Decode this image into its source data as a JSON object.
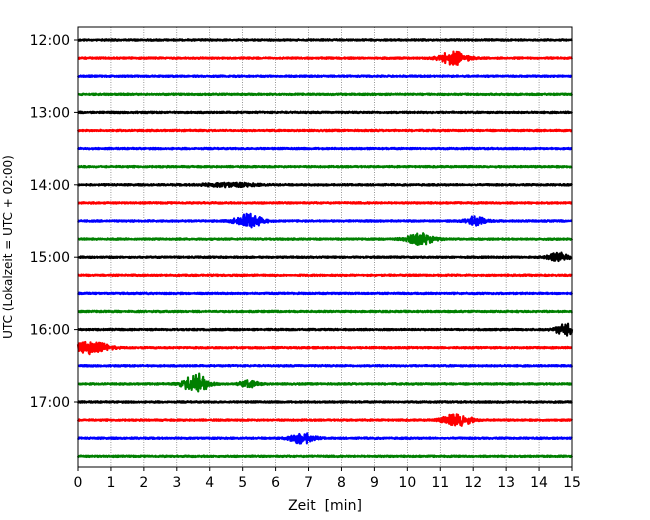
{
  "chart_data": {
    "type": "line",
    "xlabel": "Zeit  [min]",
    "ylabel": "UTC (Lokalzeit = UTC + 02:00)",
    "xlim": [
      0,
      15
    ],
    "x_ticks": [
      0,
      1,
      2,
      3,
      4,
      5,
      6,
      7,
      8,
      9,
      10,
      11,
      12,
      13,
      14,
      15
    ],
    "grid_x": true,
    "trace_interval_min": 15,
    "traces_start": "12:00",
    "traces_count": 24,
    "y_tick_labels": [
      "12:00",
      "13:00",
      "14:00",
      "15:00",
      "16:00",
      "17:00"
    ],
    "color_cycle": [
      "#000000",
      "#ff0000",
      "#0000ff",
      "#008000"
    ],
    "events": [
      {
        "trace": 1,
        "minute": 11.4,
        "amplitude": 0.55,
        "width": 0.4
      },
      {
        "trace": 8,
        "minute": 4.6,
        "amplitude": 0.15,
        "width": 0.8
      },
      {
        "trace": 10,
        "minute": 5.2,
        "amplitude": 0.55,
        "width": 0.4
      },
      {
        "trace": 10,
        "minute": 12.1,
        "amplitude": 0.4,
        "width": 0.3
      },
      {
        "trace": 11,
        "minute": 10.4,
        "amplitude": 0.45,
        "width": 0.4
      },
      {
        "trace": 12,
        "minute": 14.6,
        "amplitude": 0.35,
        "width": 0.3
      },
      {
        "trace": 16,
        "minute": 14.8,
        "amplitude": 0.45,
        "width": 0.3
      },
      {
        "trace": 17,
        "minute": 0.4,
        "amplitude": 0.5,
        "width": 0.5
      },
      {
        "trace": 19,
        "minute": 3.6,
        "amplitude": 0.9,
        "width": 0.35
      },
      {
        "trace": 19,
        "minute": 5.2,
        "amplitude": 0.25,
        "width": 0.3
      },
      {
        "trace": 21,
        "minute": 11.5,
        "amplitude": 0.55,
        "width": 0.4
      },
      {
        "trace": 22,
        "minute": 6.8,
        "amplitude": 0.45,
        "width": 0.35
      }
    ]
  }
}
